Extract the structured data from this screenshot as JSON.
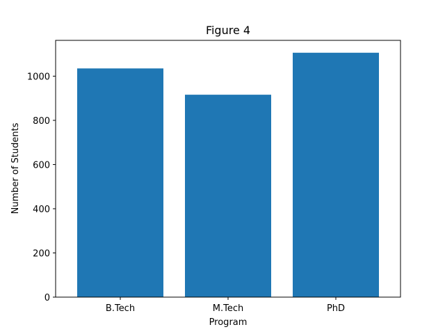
{
  "chart_data": {
    "type": "bar",
    "title": "Figure 4",
    "xlabel": "Program",
    "ylabel": "Number of Students",
    "categories": [
      "B.Tech",
      "M.Tech",
      "PhD"
    ],
    "values": [
      1035,
      916,
      1106
    ],
    "ylim": [
      0,
      1162
    ],
    "yticks": [
      0,
      200,
      400,
      600,
      800,
      1000
    ],
    "grid": false,
    "bar_color": "#1f77b4"
  }
}
